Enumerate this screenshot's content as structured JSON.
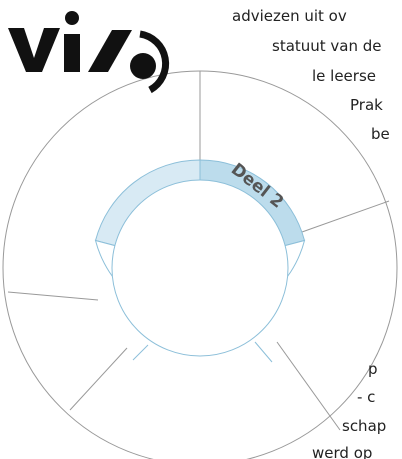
{
  "body_text": [
    "adviezen uit ov",
    "statuut van de",
    "le leerse",
    "Prak",
    "be",
    "p",
    "- c",
    "schap",
    "werd op"
  ],
  "diagram": {
    "segment_label": "Deel 2"
  }
}
